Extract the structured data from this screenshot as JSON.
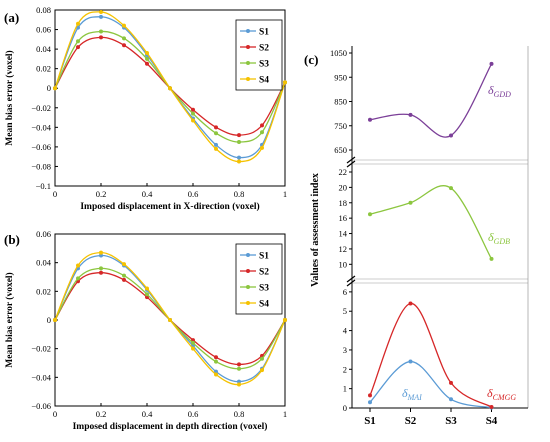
{
  "chart_data": [
    {
      "panel": "(a)",
      "type": "line",
      "xlabel": "Imposed displacement in X-direction (voxel)",
      "ylabel": "Mean bias error (voxel)",
      "xlim": [
        0,
        1
      ],
      "ylim": [
        -0.1,
        0.08
      ],
      "x_ticks": [
        "0",
        "0.2",
        "0.4",
        "0.6",
        "0.8",
        "1"
      ],
      "y_ticks": [
        "0.08",
        "0.06",
        "0.04",
        "0.02",
        "0",
        "−0.02",
        "−0.04",
        "−0.06",
        "−0.08",
        "−0.1"
      ],
      "x": [
        0,
        0.1,
        0.2,
        0.3,
        0.4,
        0.5,
        0.6,
        0.7,
        0.8,
        0.9,
        1.0
      ],
      "series": [
        {
          "name": "S1",
          "color": "#5b9bd5",
          "values": [
            0,
            0.062,
            0.073,
            0.062,
            0.034,
            0,
            -0.031,
            -0.058,
            -0.071,
            -0.058,
            0.006
          ]
        },
        {
          "name": "S2",
          "color": "#d62728",
          "values": [
            0,
            0.042,
            0.052,
            0.044,
            0.025,
            0,
            -0.022,
            -0.04,
            -0.048,
            -0.038,
            0.006
          ]
        },
        {
          "name": "S3",
          "color": "#8cc63f",
          "values": [
            0,
            0.048,
            0.058,
            0.051,
            0.03,
            0,
            -0.026,
            -0.046,
            -0.055,
            -0.045,
            0.006
          ]
        },
        {
          "name": "S4",
          "color": "#f5c200",
          "values": [
            0,
            0.066,
            0.078,
            0.064,
            0.036,
            0,
            -0.033,
            -0.062,
            -0.075,
            -0.061,
            0.006
          ]
        }
      ],
      "legend": "top-right"
    },
    {
      "panel": "(b)",
      "type": "line",
      "xlabel": "Imposed displacement in depth direction (voxel)",
      "ylabel": "Mean bias error (voxel)",
      "xlim": [
        0,
        1
      ],
      "ylim": [
        -0.06,
        0.06
      ],
      "x_ticks": [
        "0",
        "0.2",
        "0.4",
        "0.6",
        "0.8",
        "1"
      ],
      "y_ticks": [
        "0.06",
        "0.04",
        "0.02",
        "0",
        "−0.02",
        "−0.04",
        "−0.06"
      ],
      "x": [
        0,
        0.1,
        0.2,
        0.3,
        0.4,
        0.5,
        0.6,
        0.7,
        0.8,
        0.9,
        1.0
      ],
      "series": [
        {
          "name": "S1",
          "color": "#5b9bd5",
          "values": [
            0,
            0.036,
            0.045,
            0.038,
            0.021,
            0,
            -0.018,
            -0.036,
            -0.043,
            -0.034,
            0
          ]
        },
        {
          "name": "S2",
          "color": "#d62728",
          "values": [
            0,
            0.027,
            0.033,
            0.028,
            0.016,
            0,
            -0.014,
            -0.026,
            -0.031,
            -0.025,
            0
          ]
        },
        {
          "name": "S3",
          "color": "#8cc63f",
          "values": [
            0,
            0.029,
            0.036,
            0.031,
            0.018,
            0,
            -0.016,
            -0.029,
            -0.034,
            -0.027,
            0
          ]
        },
        {
          "name": "S4",
          "color": "#f5c200",
          "values": [
            0,
            0.038,
            0.047,
            0.039,
            0.022,
            0,
            -0.02,
            -0.038,
            -0.045,
            -0.035,
            0
          ]
        }
      ],
      "legend": "top-right"
    },
    {
      "panel": "(c)",
      "type": "line",
      "ylabel": "Values of assessment index",
      "categories": [
        "S1",
        "S2",
        "S3",
        "S4"
      ],
      "subplots": [
        {
          "name": "δGDD",
          "label_main": "δ",
          "label_sub": "GDD",
          "color": "#7b3f98",
          "ylim": [
            650,
            1050
          ],
          "y_ticks": [
            "650",
            "750",
            "850",
            "950",
            "1050"
          ],
          "values": [
            775,
            795,
            710,
            1005
          ]
        },
        {
          "name": "δGDB",
          "label_main": "δ",
          "label_sub": "GDB",
          "color": "#8cc63f",
          "ylim": [
            9,
            22
          ],
          "y_ticks": [
            "10",
            "12",
            "14",
            "16",
            "18",
            "20",
            "22"
          ],
          "values": [
            16.5,
            18.0,
            19.9,
            10.7
          ]
        },
        {
          "ylim": [
            0,
            6.2
          ],
          "y_ticks": [
            "0",
            "1",
            "2",
            "3",
            "4",
            "5",
            "6"
          ],
          "series": [
            {
              "name": "δMAI",
              "label_main": "δ",
              "label_sub": "MAI",
              "color": "#5b9bd5",
              "values": [
                0.3,
                2.4,
                0.45,
                0.02
              ]
            },
            {
              "name": "δCMGG",
              "label_main": "δ",
              "label_sub": "CMGG",
              "color": "#d62728",
              "values": [
                0.65,
                5.4,
                1.3,
                0.05
              ]
            }
          ]
        }
      ]
    }
  ]
}
